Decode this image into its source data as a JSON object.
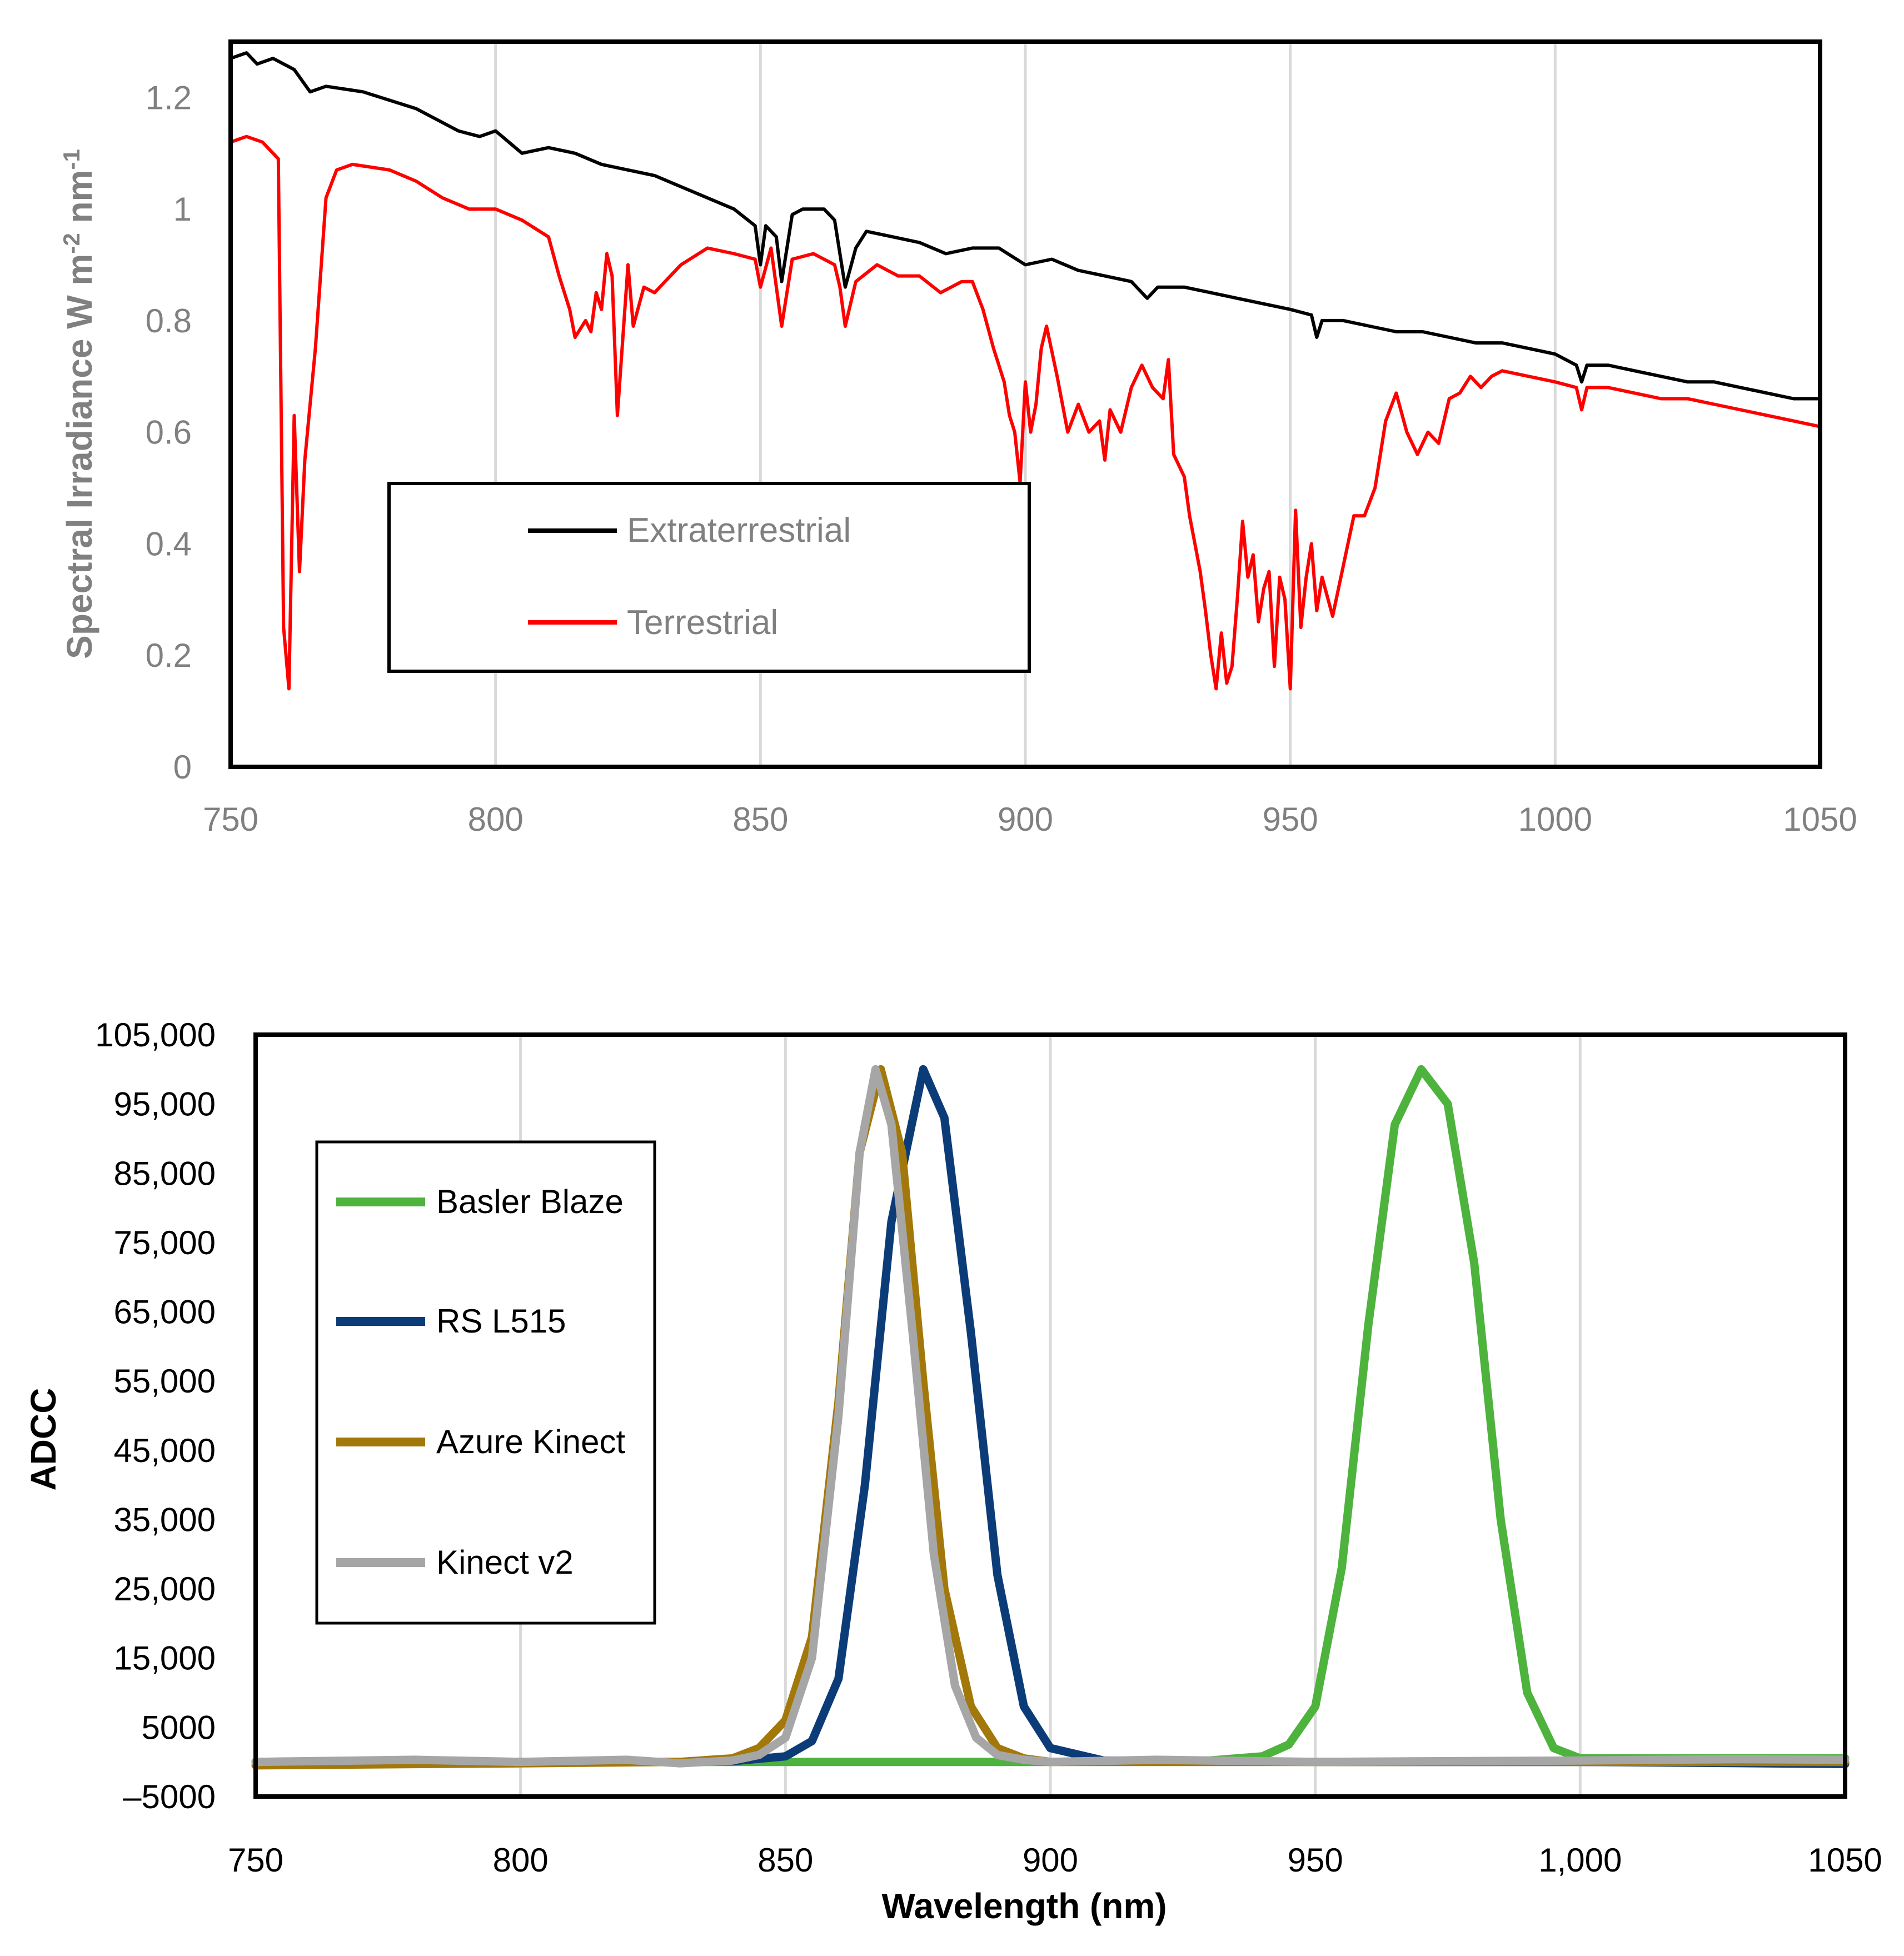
{
  "chart_data": [
    {
      "type": "line",
      "title": "",
      "xlabel": "",
      "ylabel": "Spectral Irradiance W m",
      "ylabel_superscripts": [
        "-2",
        "-1"
      ],
      "ylabel_mid": " nm",
      "xlim": [
        750,
        1050
      ],
      "ylim": [
        0,
        1.3
      ],
      "xticks": [
        750,
        800,
        850,
        900,
        950,
        1000,
        1050
      ],
      "xtick_labels": [
        "750",
        "800",
        "850",
        "900",
        "950",
        "1000",
        "1050"
      ],
      "yticks": [
        0,
        0.2,
        0.4,
        0.6,
        0.8,
        1,
        1.2
      ],
      "ytick_labels": [
        "0",
        "0.2",
        "0.4",
        "0.6",
        "0.8",
        "1",
        "1.2"
      ],
      "grid": "vertical",
      "legend_position": "center-left",
      "series": [
        {
          "name": "Extraterrestrial",
          "color": "#000000",
          "x": [
            750,
            753,
            755,
            758,
            762,
            765,
            768,
            775,
            785,
            793,
            797,
            800,
            805,
            810,
            815,
            820,
            825,
            830,
            835,
            840,
            845,
            849,
            850,
            851,
            853,
            854,
            856,
            858,
            862,
            864,
            865,
            866,
            868,
            870,
            875,
            880,
            885,
            890,
            895,
            900,
            905,
            910,
            915,
            920,
            923,
            925,
            930,
            935,
            940,
            945,
            950,
            954,
            955,
            956,
            960,
            965,
            970,
            975,
            980,
            985,
            990,
            995,
            1000,
            1004,
            1005,
            1006,
            1010,
            1015,
            1020,
            1025,
            1030,
            1035,
            1040,
            1045,
            1050
          ],
          "values": [
            1.27,
            1.28,
            1.26,
            1.27,
            1.25,
            1.21,
            1.22,
            1.21,
            1.18,
            1.14,
            1.13,
            1.14,
            1.1,
            1.11,
            1.1,
            1.08,
            1.07,
            1.06,
            1.04,
            1.02,
            1.0,
            0.97,
            0.9,
            0.97,
            0.95,
            0.87,
            0.99,
            1.0,
            1.0,
            0.98,
            0.92,
            0.86,
            0.93,
            0.96,
            0.95,
            0.94,
            0.92,
            0.93,
            0.93,
            0.9,
            0.91,
            0.89,
            0.88,
            0.87,
            0.84,
            0.86,
            0.86,
            0.85,
            0.84,
            0.83,
            0.82,
            0.81,
            0.77,
            0.8,
            0.8,
            0.79,
            0.78,
            0.78,
            0.77,
            0.76,
            0.76,
            0.75,
            0.74,
            0.72,
            0.69,
            0.72,
            0.72,
            0.71,
            0.7,
            0.69,
            0.69,
            0.68,
            0.67,
            0.66,
            0.66
          ]
        },
        {
          "name": "Terrestrial",
          "color": "#ff0000",
          "x": [
            750,
            753,
            756,
            759,
            760,
            761,
            762,
            763,
            764,
            766,
            768,
            770,
            773,
            780,
            785,
            790,
            795,
            800,
            805,
            810,
            812,
            814,
            815,
            817,
            818,
            819,
            820,
            821,
            822,
            823,
            825,
            826,
            828,
            830,
            835,
            840,
            845,
            849,
            850,
            852,
            854,
            856,
            860,
            864,
            865,
            866,
            868,
            872,
            876,
            880,
            884,
            888,
            890,
            892,
            894,
            896,
            897,
            898,
            899,
            900,
            901,
            902,
            903,
            904,
            906,
            908,
            910,
            912,
            914,
            915,
            916,
            918,
            920,
            922,
            924,
            926,
            927,
            928,
            930,
            931,
            932,
            933,
            934,
            935,
            936,
            937,
            938,
            939,
            940,
            941,
            942,
            943,
            944,
            945,
            946,
            947,
            948,
            949,
            950,
            951,
            952,
            953,
            954,
            955,
            956,
            958,
            960,
            962,
            964,
            966,
            968,
            970,
            972,
            974,
            976,
            978,
            980,
            982,
            984,
            986,
            988,
            990,
            995,
            1000,
            1004,
            1005,
            1006,
            1010,
            1015,
            1020,
            1025,
            1030,
            1035,
            1040,
            1045,
            1050
          ],
          "values": [
            1.12,
            1.13,
            1.12,
            1.09,
            0.25,
            0.14,
            0.63,
            0.35,
            0.55,
            0.75,
            1.02,
            1.07,
            1.08,
            1.07,
            1.05,
            1.02,
            1.0,
            1.0,
            0.98,
            0.95,
            0.88,
            0.82,
            0.77,
            0.8,
            0.78,
            0.85,
            0.82,
            0.92,
            0.88,
            0.63,
            0.9,
            0.79,
            0.86,
            0.85,
            0.9,
            0.93,
            0.92,
            0.91,
            0.86,
            0.93,
            0.79,
            0.91,
            0.92,
            0.9,
            0.86,
            0.79,
            0.87,
            0.9,
            0.88,
            0.88,
            0.85,
            0.87,
            0.87,
            0.82,
            0.75,
            0.69,
            0.63,
            0.6,
            0.51,
            0.69,
            0.6,
            0.65,
            0.75,
            0.79,
            0.7,
            0.6,
            0.65,
            0.6,
            0.62,
            0.55,
            0.64,
            0.6,
            0.68,
            0.72,
            0.68,
            0.66,
            0.73,
            0.56,
            0.52,
            0.45,
            0.4,
            0.35,
            0.28,
            0.2,
            0.14,
            0.24,
            0.15,
            0.18,
            0.3,
            0.44,
            0.34,
            0.38,
            0.26,
            0.32,
            0.35,
            0.18,
            0.34,
            0.3,
            0.14,
            0.46,
            0.25,
            0.34,
            0.4,
            0.28,
            0.34,
            0.27,
            0.36,
            0.45,
            0.45,
            0.5,
            0.62,
            0.67,
            0.6,
            0.56,
            0.6,
            0.58,
            0.66,
            0.67,
            0.7,
            0.68,
            0.7,
            0.71,
            0.7,
            0.69,
            0.68,
            0.64,
            0.68,
            0.68,
            0.67,
            0.66,
            0.66,
            0.65,
            0.64,
            0.63,
            0.62,
            0.61
          ]
        }
      ]
    },
    {
      "type": "line",
      "title": "",
      "xlabel": "Wavelength (nm)",
      "ylabel": "ADCC",
      "xlim": [
        750,
        1050
      ],
      "ylim": [
        -5000,
        105000
      ],
      "xticks": [
        750,
        800,
        850,
        900,
        950,
        1000,
        1050
      ],
      "xtick_labels": [
        "750",
        "800",
        "850",
        "900",
        "950",
        "1,000",
        "1050"
      ],
      "yticks": [
        105000,
        95000,
        85000,
        75000,
        65000,
        55000,
        45000,
        35000,
        25000,
        15000,
        5000,
        -5000
      ],
      "ytick_labels": [
        "105,000",
        "95,000",
        "85,000",
        "75,000",
        "65,000",
        "55,000",
        "45,000",
        "35,000",
        "25,000",
        "15,000",
        "5000",
        "–5000"
      ],
      "grid": "vertical",
      "legend_position": "left",
      "series": [
        {
          "name": "Basler Blaze",
          "color": "#4db33d",
          "x": [
            750,
            800,
            850,
            900,
            930,
            940,
            945,
            950,
            955,
            960,
            965,
            970,
            975,
            980,
            985,
            990,
            995,
            1000,
            1050
          ],
          "values": [
            0,
            0,
            0,
            0,
            200,
            800,
            2500,
            8000,
            28000,
            63000,
            92000,
            100000,
            95000,
            72000,
            35000,
            10000,
            2000,
            500,
            500
          ]
        },
        {
          "name": "RS L515",
          "color": "#0c3c78",
          "x": [
            750,
            800,
            830,
            840,
            850,
            855,
            860,
            865,
            870,
            876,
            880,
            885,
            890,
            895,
            900,
            910,
            950,
            1000,
            1050
          ],
          "values": [
            0,
            0,
            0,
            100,
            800,
            3000,
            12000,
            40000,
            78000,
            100000,
            93000,
            62000,
            27000,
            8000,
            2000,
            200,
            0,
            0,
            -300
          ]
        },
        {
          "name": "Azure Kinect",
          "color": "#a3780a",
          "x": [
            750,
            800,
            830,
            840,
            845,
            850,
            855,
            860,
            864,
            868,
            872,
            876,
            880,
            885,
            890,
            895,
            900,
            910,
            950,
            1000,
            1050
          ],
          "values": [
            -500,
            -200,
            0,
            500,
            2000,
            6000,
            18000,
            52000,
            88000,
            100000,
            88000,
            55000,
            25000,
            8000,
            2000,
            500,
            0,
            0,
            0,
            0,
            0
          ]
        },
        {
          "name": "Kinect v2",
          "color": "#a6a6a6",
          "x": [
            750,
            780,
            800,
            820,
            830,
            840,
            845,
            850,
            855,
            860,
            864,
            867,
            870,
            874,
            878,
            882,
            886,
            890,
            895,
            900,
            920,
            950,
            1000,
            1030,
            1050
          ],
          "values": [
            0,
            300,
            0,
            300,
            -200,
            200,
            1000,
            3500,
            15000,
            50000,
            88000,
            100000,
            92000,
            62000,
            30000,
            11000,
            3500,
            1000,
            300,
            0,
            300,
            0,
            200,
            400,
            300
          ]
        }
      ]
    }
  ]
}
